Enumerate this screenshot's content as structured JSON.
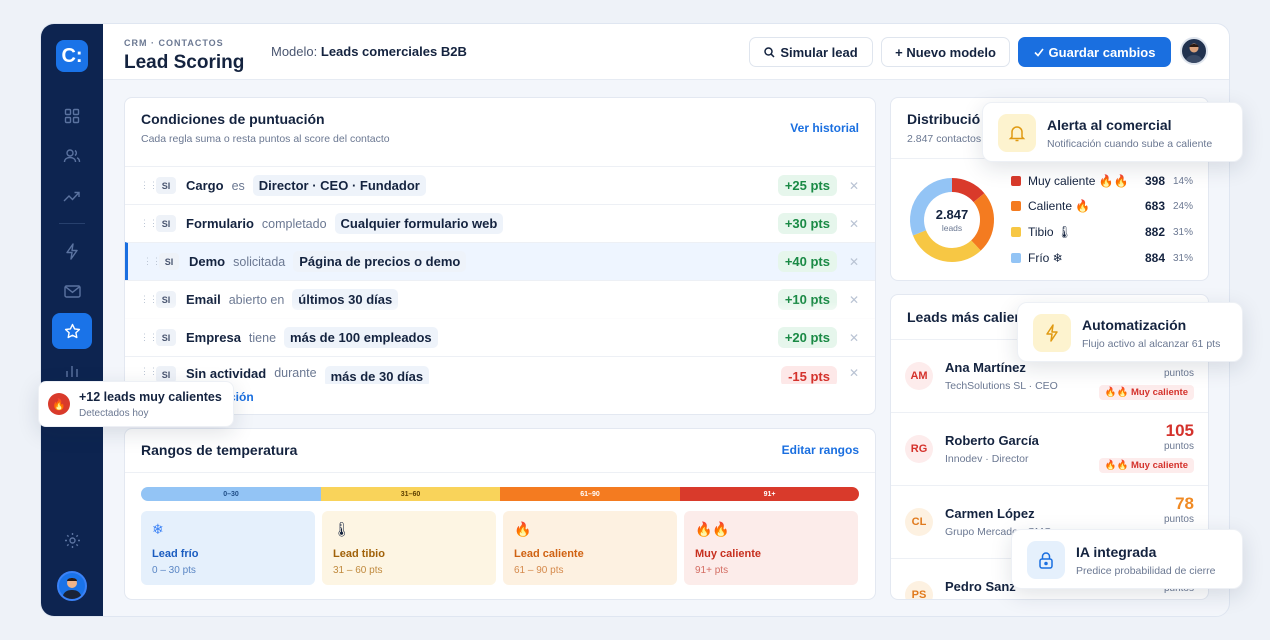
{
  "header": {
    "breadcrumb": "CRM · CONTACTOS",
    "title": "Lead Scoring",
    "model_label": "Modelo:",
    "model_name": "Leads comerciales B2B",
    "simulate_label": "Simular lead",
    "new_model_label": "+ Nuevo modelo",
    "save_label": "Guardar cambios"
  },
  "sidebar": {
    "logo": "C:",
    "items": [
      "dashboard-icon",
      "users-icon",
      "trend-icon",
      "bolt-icon",
      "mail-icon",
      "star-icon",
      "chart-icon"
    ],
    "active": "star-icon",
    "bottom": [
      "settings-icon",
      "avatar"
    ]
  },
  "conditions": {
    "title": "Condiciones de puntuación",
    "subtitle": "Cada regla suma o resta puntos al score del contacto",
    "history_link": "Ver historial",
    "add_link_partial": "ción",
    "rules": [
      {
        "tag": "SI",
        "field": "Cargo",
        "op": "es",
        "value": "Director · CEO · Fundador",
        "points": "+25 pts"
      },
      {
        "tag": "SI",
        "field": "Formulario",
        "op": "completado",
        "value": "Cualquier formulario web",
        "points": "+30 pts"
      },
      {
        "tag": "SI",
        "field": "Demo",
        "op": "solicitada",
        "value": "Página de precios o demo",
        "points": "+40 pts"
      },
      {
        "tag": "SI",
        "field": "Email",
        "op": "abierto en",
        "value": "últimos 30 días",
        "points": "+10 pts"
      },
      {
        "tag": "SI",
        "field": "Empresa",
        "op": "tiene",
        "value": "más de 100 empleados",
        "points": "+20 pts"
      },
      {
        "tag": "SI",
        "field": "Sin actividad",
        "op": "durante",
        "value": "más de 30 días",
        "points": "-15 pts"
      }
    ]
  },
  "ranges": {
    "title": "Rangos de temperatura",
    "edit_link": "Editar rangos",
    "bar": [
      "0–30",
      "31–60",
      "61–90",
      "91+"
    ],
    "cards": [
      {
        "icon": "❄",
        "name": "Lead frío",
        "range": "0 – 30 pts"
      },
      {
        "icon": "🌡",
        "name": "Lead tibio",
        "range": "31 – 60 pts"
      },
      {
        "icon": "🔥",
        "name": "Lead caliente",
        "range": "61 – 90 pts"
      },
      {
        "icon": "🔥🔥",
        "name": "Muy caliente",
        "range": "91+ pts"
      }
    ]
  },
  "distribution": {
    "title_partial": "Distribució",
    "subtitle_partial": "2.847 contactos",
    "total": "2.847",
    "total_label": "leads",
    "items": [
      {
        "label": "Muy caliente 🔥🔥",
        "count": "398",
        "pct": "14%",
        "share": 14,
        "color": "#d93a2b"
      },
      {
        "label": "Caliente 🔥",
        "count": "683",
        "pct": "24%",
        "share": 24,
        "color": "#f47b20"
      },
      {
        "label": "Tibio 🌡",
        "count": "882",
        "pct": "31%",
        "share": 31,
        "color": "#f7c744"
      },
      {
        "label": "Frío ❄",
        "count": "884",
        "pct": "31%",
        "share": 31,
        "color": "#93c4f5"
      }
    ]
  },
  "hot_leads": {
    "title_partial": "Leads más calien",
    "leads": [
      {
        "initials": "AM",
        "name": "Ana Martínez",
        "company": "TechSolutions SL · CEO",
        "score": "",
        "pts": "puntos",
        "badge": "🔥🔥 Muy caliente"
      },
      {
        "initials": "RG",
        "name": "Roberto García",
        "company": "Innodev · Director",
        "score": "105",
        "pts": "puntos",
        "badge": "🔥🔥 Muy caliente"
      },
      {
        "initials": "CL",
        "name": "Carmen López",
        "company": "Grupo Mercado · CMO",
        "score": "78",
        "pts": "puntos",
        "badge": ""
      },
      {
        "initials": "PS",
        "name": "Pedro Sanz",
        "company": "",
        "score": "",
        "pts": "puntos",
        "badge": ""
      }
    ]
  },
  "floats": {
    "alert": {
      "title": "Alerta al comercial",
      "sub": "Notificación cuando sube a caliente"
    },
    "auto": {
      "title": "Automatización",
      "sub": "Flujo activo al alcanzar 61 pts"
    },
    "ai": {
      "title": "IA integrada",
      "sub": "Predice probabilidad de cierre"
    },
    "toast": {
      "icon": "🔥",
      "title": "+12 leads muy calientes",
      "sub": "Detectados hoy"
    }
  }
}
